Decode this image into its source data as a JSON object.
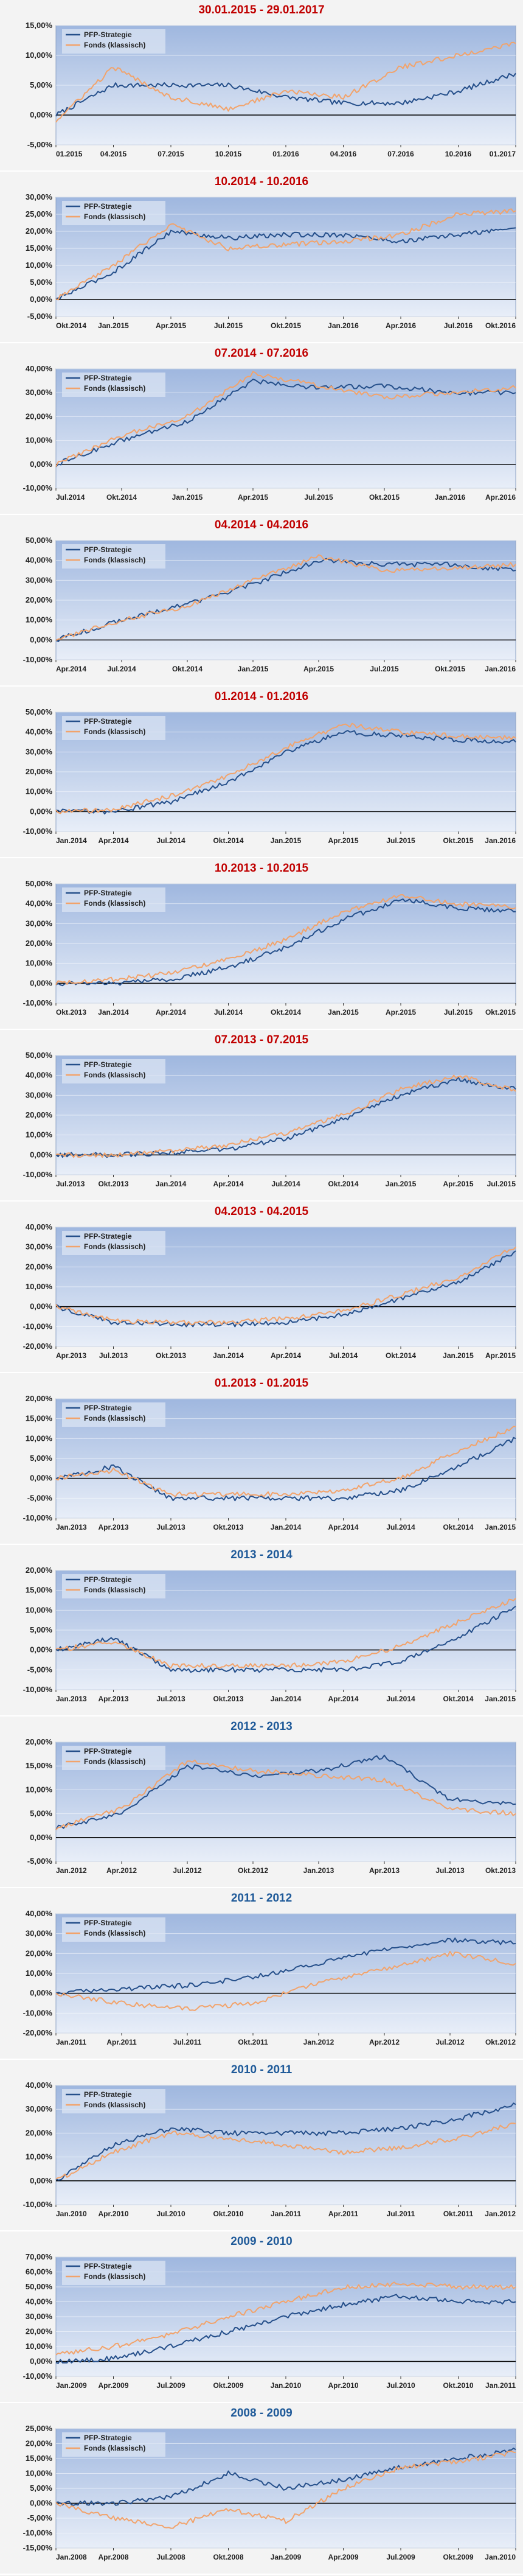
{
  "colors": {
    "strategy": "#254f8a",
    "fund": "#f2a36b",
    "title_red": "#c00000",
    "title_blue": "#1f5a99"
  },
  "legend_labels": [
    "PFP-Strategie",
    "Fonds (klassisch)"
  ],
  "chart_data": [
    {
      "type": "line",
      "title": "30.01.2015 - 29.01.2017",
      "title_color": "#c00000",
      "ylim": [
        -5,
        15
      ],
      "y_ticks": [
        "15,00%",
        "10,00%",
        "5,00%",
        "0,00%",
        "-5,00%"
      ],
      "categories": [
        "01.2015",
        "04.2015",
        "07.2015",
        "10.2015",
        "01.2016",
        "04.2016",
        "07.2016",
        "10.2016",
        "01.2017"
      ],
      "series": [
        {
          "name": "PFP-Strategie",
          "values": [
            0,
            5,
            5,
            5,
            3,
            2,
            2,
            4,
            7
          ]
        },
        {
          "name": "Fonds (klassisch)",
          "values": [
            -1,
            8,
            3,
            1,
            4,
            3,
            8,
            10,
            12
          ]
        }
      ]
    },
    {
      "type": "line",
      "title": "10.2014 - 10.2016",
      "title_color": "#c00000",
      "ylim": [
        -5,
        30
      ],
      "y_ticks": [
        "30,00%",
        "25,00%",
        "20,00%",
        "15,00%",
        "10,00%",
        "5,00%",
        "0,00%",
        "-5,00%"
      ],
      "categories": [
        "Okt.2014",
        "Jan.2015",
        "Apr.2015",
        "Jul.2015",
        "Okt.2015",
        "Jan.2016",
        "Apr.2016",
        "Jul.2016",
        "Okt.2016"
      ],
      "series": [
        {
          "name": "PFP-Strategie",
          "values": [
            0,
            8,
            20,
            18,
            19,
            19,
            17,
            19,
            21
          ]
        },
        {
          "name": "Fonds (klassisch)",
          "values": [
            0,
            10,
            22,
            15,
            16,
            17,
            19,
            25,
            26
          ]
        }
      ]
    },
    {
      "type": "line",
      "title": "07.2014 - 07.2016",
      "title_color": "#c00000",
      "ylim": [
        -10,
        40
      ],
      "y_ticks": [
        "40,00%",
        "30,00%",
        "20,00%",
        "10,00%",
        "0,00%",
        "-10,00%"
      ],
      "categories": [
        "Jul.2014",
        "Okt.2014",
        "Jan.2015",
        "Apr.2015",
        "Jul.2015",
        "Okt.2015",
        "Jan.2016",
        "Apr.2016"
      ],
      "series": [
        {
          "name": "PFP-Strategie",
          "values": [
            0,
            10,
            18,
            35,
            32,
            33,
            30,
            30
          ]
        },
        {
          "name": "Fonds (klassisch)",
          "values": [
            0,
            12,
            20,
            38,
            33,
            28,
            30,
            32
          ]
        }
      ]
    },
    {
      "type": "line",
      "title": "04.2014 - 04.2016",
      "title_color": "#c00000",
      "ylim": [
        -10,
        50
      ],
      "y_ticks": [
        "50,00%",
        "40,00%",
        "30,00%",
        "20,00%",
        "10,00%",
        "0,00%",
        "-10,00%"
      ],
      "categories": [
        "Apr.2014",
        "Jul.2014",
        "Okt.2014",
        "Jan.2015",
        "Apr.2015",
        "Jul.2015",
        "Okt.2015",
        "Jan.2016"
      ],
      "series": [
        {
          "name": "PFP-Strategie",
          "values": [
            0,
            10,
            18,
            28,
            40,
            38,
            38,
            35
          ]
        },
        {
          "name": "Fonds (klassisch)",
          "values": [
            0,
            10,
            17,
            30,
            42,
            35,
            36,
            38
          ]
        }
      ]
    },
    {
      "type": "line",
      "title": "01.2014 - 01.2016",
      "title_color": "#c00000",
      "ylim": [
        -10,
        50
      ],
      "y_ticks": [
        "50,00%",
        "40,00%",
        "30,00%",
        "20,00%",
        "10,00%",
        "0,00%",
        "-10,00%"
      ],
      "categories": [
        "Jan.2014",
        "Apr.2014",
        "Jul.2014",
        "Okt.2014",
        "Jan.2015",
        "Apr.2015",
        "Jul.2015",
        "Okt.2015",
        "Jan.2016"
      ],
      "series": [
        {
          "name": "PFP-Strategie",
          "values": [
            0,
            0,
            5,
            15,
            30,
            40,
            38,
            36,
            35
          ]
        },
        {
          "name": "Fonds (klassisch)",
          "values": [
            0,
            1,
            8,
            18,
            32,
            44,
            40,
            38,
            37
          ]
        }
      ]
    },
    {
      "type": "line",
      "title": "10.2013 - 10.2015",
      "title_color": "#c00000",
      "ylim": [
        -10,
        50
      ],
      "y_ticks": [
        "50,00%",
        "40,00%",
        "30,00%",
        "20,00%",
        "10,00%",
        "0,00%",
        "-10,00%"
      ],
      "categories": [
        "Okt.2013",
        "Jan.2014",
        "Apr.2014",
        "Jul.2014",
        "Okt.2014",
        "Jan.2015",
        "Apr.2015",
        "Jul.2015",
        "Okt.2015"
      ],
      "series": [
        {
          "name": "PFP-Strategie",
          "values": [
            0,
            0,
            2,
            8,
            18,
            32,
            42,
            38,
            36
          ]
        },
        {
          "name": "Fonds (klassisch)",
          "values": [
            0,
            2,
            5,
            12,
            22,
            36,
            44,
            40,
            38
          ]
        }
      ]
    },
    {
      "type": "line",
      "title": "07.2013 - 07.2015",
      "title_color": "#c00000",
      "ylim": [
        -10,
        50
      ],
      "y_ticks": [
        "50,00%",
        "40,00%",
        "30,00%",
        "20,00%",
        "10,00%",
        "0,00%",
        "-10,00%"
      ],
      "categories": [
        "Jul.2013",
        "Okt.2013",
        "Jan.2014",
        "Apr.2014",
        "Jul.2014",
        "Okt.2014",
        "Jan.2015",
        "Apr.2015",
        "Jul.2015"
      ],
      "series": [
        {
          "name": "PFP-Strategie",
          "values": [
            0,
            0,
            1,
            3,
            8,
            18,
            30,
            38,
            33
          ]
        },
        {
          "name": "Fonds (klassisch)",
          "values": [
            0,
            0,
            2,
            5,
            11,
            20,
            33,
            40,
            32
          ]
        }
      ]
    },
    {
      "type": "line",
      "title": "04.2013 - 04.2015",
      "title_color": "#c00000",
      "ylim": [
        -20,
        40
      ],
      "y_ticks": [
        "40,00%",
        "30,00%",
        "20,00%",
        "10,00%",
        "0,00%",
        "-10,00%",
        "-20,00%"
      ],
      "categories": [
        "Apr.2013",
        "Jul.2013",
        "Okt.2013",
        "Jan.2014",
        "Apr.2014",
        "Jul.2014",
        "Okt.2014",
        "Jan.2015",
        "Apr.2015"
      ],
      "series": [
        {
          "name": "PFP-Strategie",
          "values": [
            0,
            -8,
            -9,
            -9,
            -8,
            -4,
            4,
            12,
            28
          ]
        },
        {
          "name": "Fonds (klassisch)",
          "values": [
            0,
            -7,
            -8,
            -8,
            -6,
            -2,
            6,
            15,
            30
          ]
        }
      ]
    },
    {
      "type": "line",
      "title": "01.2013 - 01.2015",
      "title_color": "#c00000",
      "ylim": [
        -10,
        20
      ],
      "y_ticks": [
        "20,00%",
        "15,00%",
        "10,00%",
        "5,00%",
        "0,00%",
        "-5,00%",
        "-10,00%"
      ],
      "categories": [
        "Jan.2013",
        "Apr.2013",
        "Jul.2013",
        "Okt.2013",
        "Jan.2014",
        "Apr.2014",
        "Jul.2014",
        "Okt.2014",
        "Jan.2015"
      ],
      "series": [
        {
          "name": "PFP-Strategie",
          "values": [
            0,
            3,
            -5,
            -5,
            -5,
            -5,
            -3,
            3,
            10
          ]
        },
        {
          "name": "Fonds (klassisch)",
          "values": [
            0,
            2,
            -4,
            -4,
            -4,
            -3,
            0,
            7,
            13
          ]
        }
      ]
    },
    {
      "type": "line",
      "title": "2013 - 2014",
      "title_color": "#1f5a99",
      "ylim": [
        -10,
        20
      ],
      "y_ticks": [
        "20,00%",
        "15,00%",
        "10,00%",
        "5,00%",
        "0,00%",
        "-5,00%",
        "-10,00%"
      ],
      "categories": [
        "Jan.2013",
        "Apr.2013",
        "Jul.2013",
        "Okt.2013",
        "Jan.2014",
        "Apr.2014",
        "Jul.2014",
        "Okt.2014",
        "Jan.2015"
      ],
      "series": [
        {
          "name": "PFP-Strategie",
          "values": [
            0,
            3,
            -5,
            -5,
            -5,
            -5,
            -3,
            3,
            11
          ]
        },
        {
          "name": "Fonds (klassisch)",
          "values": [
            0,
            2,
            -4,
            -4,
            -4,
            -3,
            1,
            7,
            13
          ]
        }
      ]
    },
    {
      "type": "line",
      "title": "2012 - 2013",
      "title_color": "#1f5a99",
      "ylim": [
        -5,
        20
      ],
      "y_ticks": [
        "20,00%",
        "15,00%",
        "10,00%",
        "5,00%",
        "0,00%",
        "-5,00%"
      ],
      "categories": [
        "Jan.2012",
        "Apr.2012",
        "Jul.2012",
        "Okt.2012",
        "Jan.2013",
        "Apr.2013",
        "Jul.2013",
        "Okt.2013"
      ],
      "series": [
        {
          "name": "PFP-Strategie",
          "values": [
            2,
            5,
            15,
            13,
            14,
            17,
            8,
            7
          ]
        },
        {
          "name": "Fonds (klassisch)",
          "values": [
            2,
            6,
            16,
            14,
            13,
            12,
            6,
            5
          ]
        }
      ]
    },
    {
      "type": "line",
      "title": "2011 - 2012",
      "title_color": "#1f5a99",
      "ylim": [
        -20,
        40
      ],
      "y_ticks": [
        "40,00%",
        "30,00%",
        "20,00%",
        "10,00%",
        "0,00%",
        "-10,00%",
        "-20,00%"
      ],
      "categories": [
        "Jan.2011",
        "Apr.2011",
        "Jul.2011",
        "Okt.2011",
        "Jan.2012",
        "Apr.2012",
        "Jul.2012",
        "Okt.2012"
      ],
      "series": [
        {
          "name": "PFP-Strategie",
          "values": [
            0,
            2,
            4,
            8,
            15,
            22,
            27,
            25
          ]
        },
        {
          "name": "Fonds (klassisch)",
          "values": [
            0,
            -5,
            -8,
            -5,
            5,
            12,
            20,
            15
          ]
        }
      ]
    },
    {
      "type": "line",
      "title": "2010 - 2011",
      "title_color": "#1f5a99",
      "ylim": [
        -10,
        40
      ],
      "y_ticks": [
        "40,00%",
        "30,00%",
        "20,00%",
        "10,00%",
        "0,00%",
        "-10,00%"
      ],
      "categories": [
        "Jan.2010",
        "Apr.2010",
        "Jul.2010",
        "Okt.2010",
        "Jan.2011",
        "Apr.2011",
        "Jul.2011",
        "Okt.2011",
        "Jan.2012"
      ],
      "series": [
        {
          "name": "PFP-Strategie",
          "values": [
            0,
            15,
            22,
            20,
            20,
            20,
            22,
            26,
            32
          ]
        },
        {
          "name": "Fonds (klassisch)",
          "values": [
            0,
            12,
            20,
            18,
            15,
            12,
            14,
            18,
            24
          ]
        }
      ]
    },
    {
      "type": "line",
      "title": "2009 - 2010",
      "title_color": "#1f5a99",
      "ylim": [
        -10,
        70
      ],
      "y_ticks": [
        "70,00%",
        "60,00%",
        "50,00%",
        "40,00%",
        "30,00%",
        "20,00%",
        "10,00%",
        "0,00%",
        "-10,00%"
      ],
      "categories": [
        "Jan.2009",
        "Apr.2009",
        "Jul.2009",
        "Okt.2009",
        "Jan.2010",
        "Apr.2010",
        "Jul.2010",
        "Okt.2010",
        "Jan.2011"
      ],
      "series": [
        {
          "name": "PFP-Strategie",
          "values": [
            0,
            2,
            10,
            20,
            30,
            38,
            44,
            40,
            40
          ]
        },
        {
          "name": "Fonds (klassisch)",
          "values": [
            5,
            10,
            18,
            30,
            40,
            50,
            52,
            50,
            50
          ]
        }
      ]
    },
    {
      "type": "line",
      "title": "2008 - 2009",
      "title_color": "#1f5a99",
      "ylim": [
        -15,
        25
      ],
      "y_ticks": [
        "25,00%",
        "20,00%",
        "15,00%",
        "10,00%",
        "5,00%",
        "0,00%",
        "-5,00%",
        "-10,00%",
        "-15,00%"
      ],
      "categories": [
        "Jan.2008",
        "Apr.2008",
        "Jul.2008",
        "Okt.2008",
        "Jan.2009",
        "Apr.2009",
        "Jul.2009",
        "Okt.2009",
        "Jan.2010"
      ],
      "series": [
        {
          "name": "PFP-Strategie",
          "values": [
            0,
            0,
            2,
            10,
            5,
            8,
            12,
            15,
            18
          ]
        },
        {
          "name": "Fonds (klassisch)",
          "values": [
            0,
            -5,
            -8,
            -2,
            -6,
            5,
            12,
            14,
            17
          ]
        }
      ]
    }
  ]
}
